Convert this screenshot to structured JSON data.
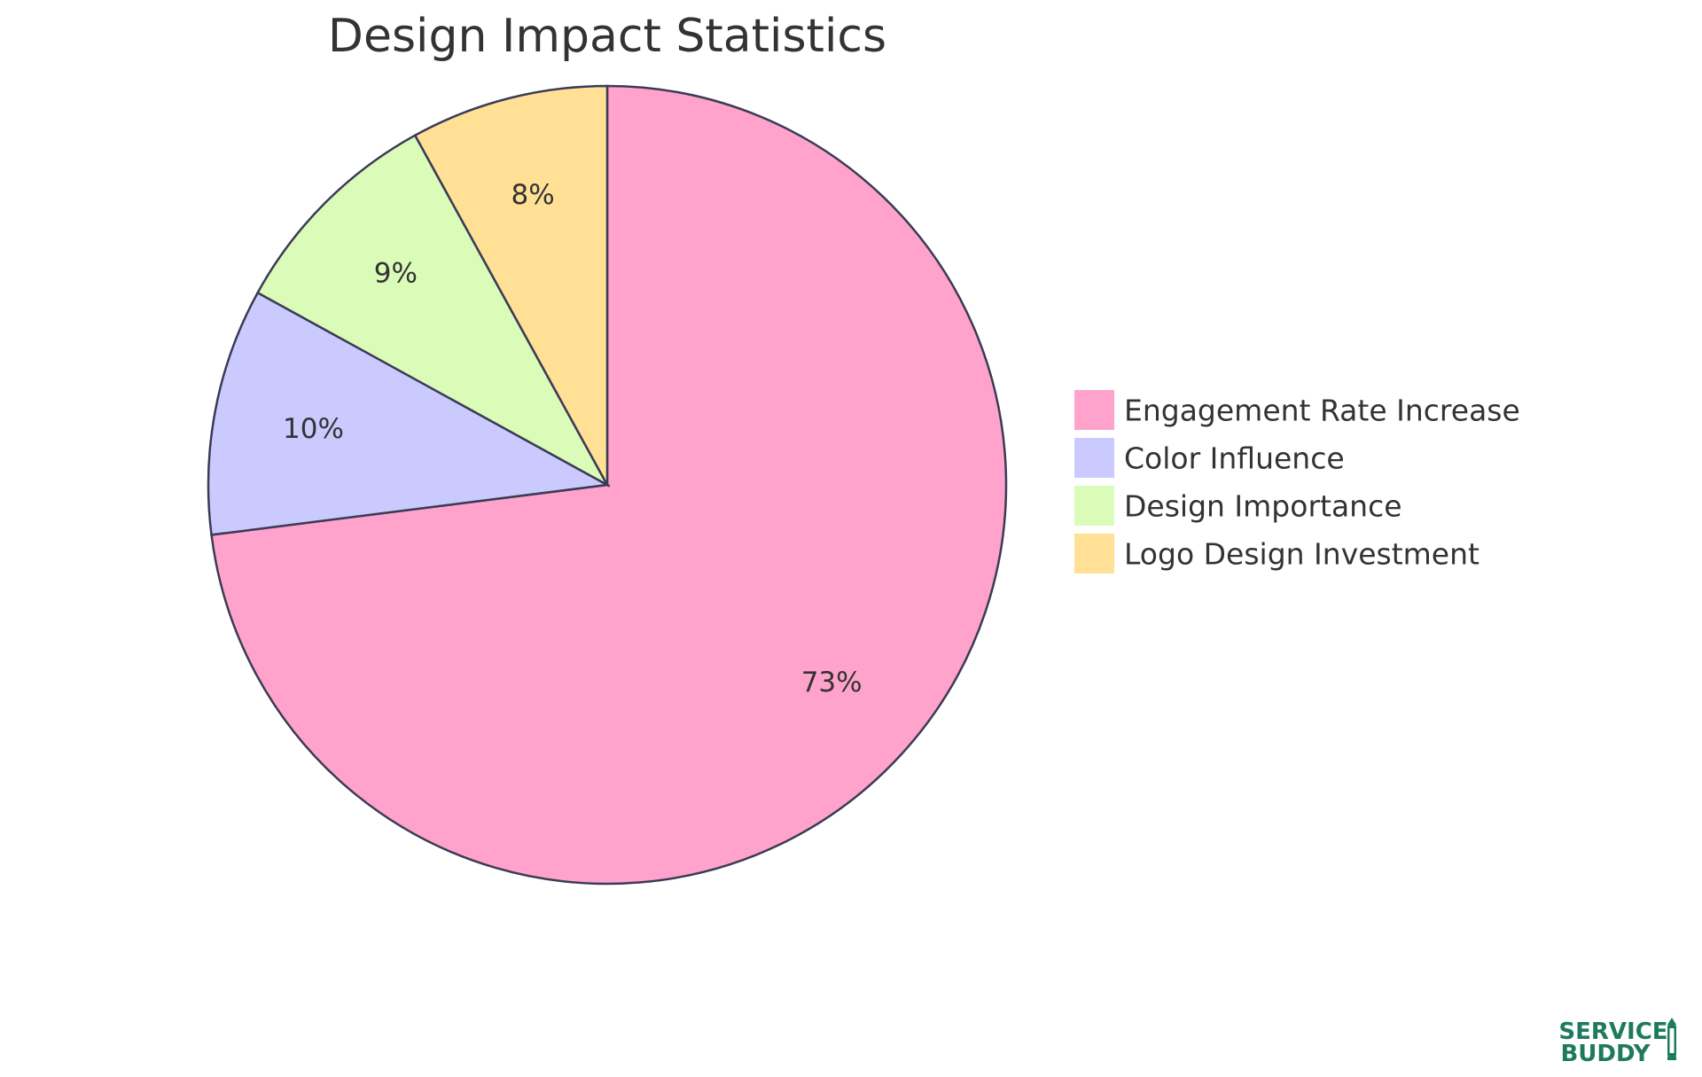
{
  "chart_data": {
    "type": "pie",
    "title": "Design Impact Statistics",
    "slices": [
      {
        "name": "Engagement Rate Increase",
        "value": 73,
        "label": "73%",
        "color": "#FFA3CC"
      },
      {
        "name": "Color Influence",
        "value": 10,
        "label": "10%",
        "color": "#CACAFF"
      },
      {
        "name": "Design Importance",
        "value": 9,
        "label": "9%",
        "color": "#DBFBB9"
      },
      {
        "name": "Logo Design Investment",
        "value": 8,
        "label": "8%",
        "color": "#FFE095"
      }
    ],
    "legend_position": "right",
    "stroke_color": "#3b3b55"
  },
  "logo": {
    "line1": "SERVICE",
    "line2": "BUDDY",
    "color": "#1e7a5e"
  }
}
